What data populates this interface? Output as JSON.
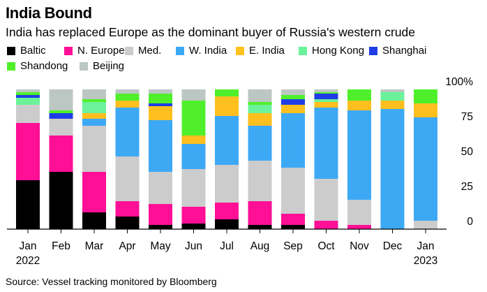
{
  "title": "India Bound",
  "subtitle": "India has replaced Europe as the dominant buyer of Russia's western crude",
  "source": "Source: Vessel tracking monitored by Bloomberg",
  "legend": [
    {
      "name": "Baltic",
      "color": "#000000"
    },
    {
      "name": "N. Europe",
      "color": "#ff0f96"
    },
    {
      "name": "Med.",
      "color": "#cccccc"
    },
    {
      "name": "W. India",
      "color": "#3da9f5"
    },
    {
      "name": "E. India",
      "color": "#ffbf1f"
    },
    {
      "name": "Hong Kong",
      "color": "#6bf29a"
    },
    {
      "name": "Shanghai",
      "color": "#1f3de6"
    },
    {
      "name": "Shandong",
      "color": "#4ff02b"
    },
    {
      "name": "Beijing",
      "color": "#bcc7c3"
    }
  ],
  "chart_data": {
    "type": "bar",
    "stacked": true,
    "title": "India Bound",
    "ylim": [
      0,
      100
    ],
    "y_ticks": [
      "0",
      "25",
      "50",
      "75",
      "100%"
    ],
    "y_tick_values": [
      0,
      25,
      50,
      75,
      100
    ],
    "categories": [
      "Jan",
      "Feb",
      "Mar",
      "Apr",
      "May",
      "Jun",
      "Jul",
      "Aug",
      "Sep",
      "Oct",
      "Nov",
      "Dec",
      "Jan"
    ],
    "category_sublabels": [
      "2022",
      "",
      "",
      "",
      "",
      "",
      "",
      "",
      "",
      "",
      "",
      "",
      "2023"
    ],
    "series": [
      {
        "name": "Baltic",
        "values": [
          35,
          41,
          12,
          9,
          3,
          4,
          7,
          3,
          3,
          0,
          0,
          0,
          0
        ]
      },
      {
        "name": "N. Europe",
        "values": [
          41,
          26,
          29,
          11,
          15,
          12,
          12,
          17,
          8,
          6,
          3,
          0,
          0
        ]
      },
      {
        "name": "Med.",
        "values": [
          13,
          12,
          33,
          32,
          23,
          27,
          27,
          29,
          33,
          30,
          18,
          0,
          6
        ]
      },
      {
        "name": "W. India",
        "values": [
          0,
          0,
          5,
          35,
          37,
          18,
          35,
          25,
          39,
          51,
          64,
          86,
          74
        ]
      },
      {
        "name": "E. India",
        "values": [
          0,
          0,
          4,
          5,
          10,
          6,
          14,
          9,
          6,
          4,
          7,
          6,
          10
        ]
      },
      {
        "name": "Hong Kong",
        "values": [
          5,
          0,
          8,
          0,
          0,
          0,
          0,
          6,
          0,
          2,
          0,
          6,
          0
        ]
      },
      {
        "name": "Shanghai",
        "values": [
          2,
          4,
          0,
          0,
          2,
          0,
          0,
          0,
          4,
          4,
          0,
          0,
          0
        ]
      },
      {
        "name": "Shandong",
        "values": [
          2,
          2,
          2,
          5,
          7,
          25,
          5,
          2,
          3,
          1,
          8,
          0,
          10
        ]
      },
      {
        "name": "Beijing",
        "values": [
          2,
          15,
          7,
          3,
          3,
          8,
          0,
          9,
          4,
          2,
          0,
          2,
          0
        ]
      }
    ]
  }
}
